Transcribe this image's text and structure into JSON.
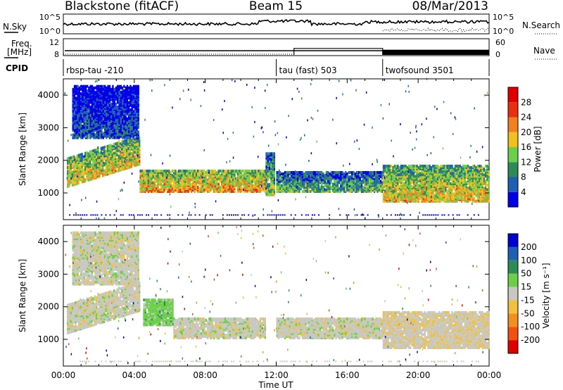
{
  "header": {
    "site": "Blackstone (fitACF)",
    "beam": "Beam 15",
    "date": "08/Mar/2013"
  },
  "left_labels": {
    "nsky": "N.Sky",
    "freq_1": "Freq.",
    "freq_2": "[MHz]",
    "cpid": "CPID"
  },
  "right_labels": {
    "nsearch": "N.Search",
    "nave": "Nave"
  },
  "noise_panel": {
    "left_ticks": [
      "10^5",
      "10^0"
    ],
    "right_ticks": [
      "10^5",
      "10^0"
    ]
  },
  "freq_panel": {
    "left_ticks": [
      "12",
      "8"
    ],
    "right_ticks": [
      "60",
      "0"
    ],
    "nave_segments": [
      {
        "start_h": 0,
        "end_h": 13,
        "nave": 0
      },
      {
        "start_h": 13,
        "end_h": 18,
        "nave": 25
      },
      {
        "start_h": 18,
        "end_h": 24,
        "nave": 20
      }
    ]
  },
  "cpid": [
    {
      "label": "rbsp-tau -210",
      "start_h": 0
    },
    {
      "label": "tau (fast) 503",
      "start_h": 12
    },
    {
      "label": "twofsound 3501",
      "start_h": 18
    }
  ],
  "axes": {
    "ylabel": "Slant Range [km]",
    "xlabel": "Time UT",
    "x_ticks": [
      "00:00",
      "04:00",
      "08:00",
      "12:00",
      "16:00",
      "20:00",
      "00:00"
    ],
    "y_ticks": [
      "1000",
      "2000",
      "3000",
      "4000"
    ]
  },
  "chart_data": [
    {
      "type": "heatmap",
      "quantity": "Power",
      "colorbar_label": "Power [dB]",
      "colorbar_ticks": [
        "28",
        "24",
        "20",
        "16",
        "12",
        "8",
        "4"
      ],
      "scale": [
        0,
        30
      ],
      "colors": [
        "#0000e6",
        "#1e5fb4",
        "#2e8b57",
        "#6ccf4a",
        "#f0c020",
        "#f08020",
        "#e83010",
        "#e00000"
      ],
      "xlim": [
        0,
        24
      ],
      "ylim": [
        180,
        4500
      ],
      "bands": [
        {
          "start_h": 0.2,
          "end_h": 4.3,
          "range_start": 1150,
          "range_end": 2050,
          "slope_per_h": 170,
          "power": 18
        },
        {
          "start_h": 0.5,
          "end_h": 4.2,
          "range_start": 2650,
          "range_end": 4250,
          "slope_per_h": 0,
          "power": 6
        },
        {
          "start_h": 4.3,
          "end_h": 11.4,
          "range_start": 1000,
          "range_end": 1650,
          "slope_per_h": 0,
          "power": 20
        },
        {
          "start_h": 11.4,
          "end_h": 11.9,
          "range_start": 900,
          "range_end": 2200,
          "slope_per_h": 0,
          "power": 14
        },
        {
          "start_h": 12.0,
          "end_h": 18.0,
          "range_start": 1000,
          "range_end": 1600,
          "slope_per_h": 0,
          "power": 12
        },
        {
          "start_h": 18.0,
          "end_h": 24.0,
          "range_start": 700,
          "range_end": 1800,
          "slope_per_h": 0,
          "power": 18
        }
      ]
    },
    {
      "type": "heatmap",
      "quantity": "Velocity",
      "colorbar_label": "Velocity [m s⁻¹]",
      "colorbar_ticks": [
        "200",
        "100",
        "50",
        "15",
        "-15",
        "-50",
        "-100",
        "-200"
      ],
      "scale": [
        -200,
        200
      ],
      "colors": [
        "#e00000",
        "#f05010",
        "#f09020",
        "#f0c040",
        "#c8c8c0",
        "#6ccf4a",
        "#2e8b57",
        "#1e5fb4",
        "#0000d0"
      ],
      "xlim": [
        0,
        24
      ],
      "ylim": [
        180,
        4500
      ],
      "bands": [
        {
          "start_h": 0.2,
          "end_h": 4.3,
          "range_start": 1150,
          "range_end": 2050,
          "slope_per_h": 170,
          "velocity": 0
        },
        {
          "start_h": 0.5,
          "end_h": 4.2,
          "range_start": 2650,
          "range_end": 4250,
          "slope_per_h": 0,
          "velocity": 0
        },
        {
          "start_h": 4.5,
          "end_h": 6.2,
          "range_start": 1400,
          "range_end": 2200,
          "slope_per_h": 0,
          "velocity": 40
        },
        {
          "start_h": 6.2,
          "end_h": 11.4,
          "range_start": 1000,
          "range_end": 1600,
          "slope_per_h": 0,
          "velocity": 0
        },
        {
          "start_h": 12.0,
          "end_h": 18.0,
          "range_start": 1000,
          "range_end": 1600,
          "slope_per_h": 0,
          "velocity": 0
        },
        {
          "start_h": 18.0,
          "end_h": 24.0,
          "range_start": 700,
          "range_end": 1800,
          "slope_per_h": 0,
          "velocity": -10
        }
      ]
    }
  ]
}
